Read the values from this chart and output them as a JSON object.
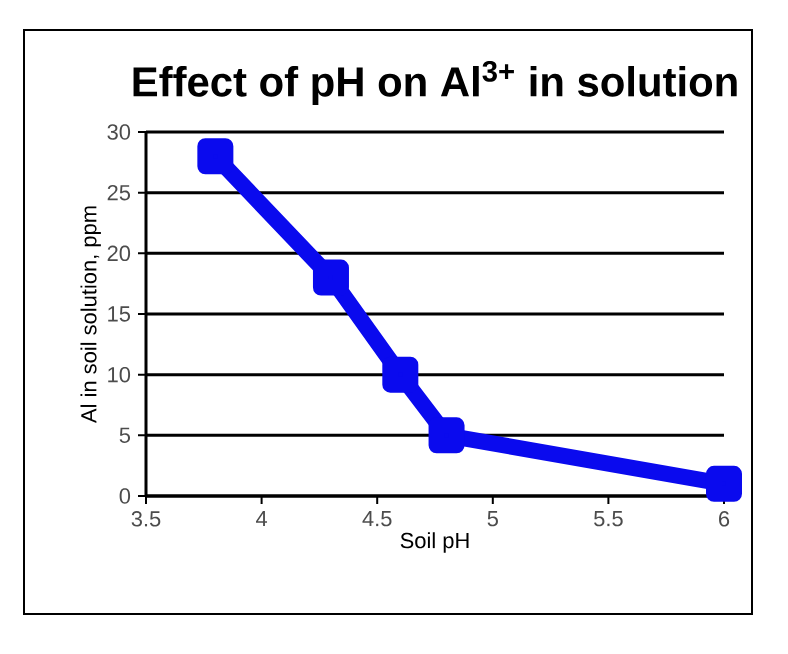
{
  "chart_data": {
    "type": "line",
    "title": "Effect of pH on Al$^{3+}$ in solution",
    "xlabel": "Soil pH",
    "ylabel": "Al in soil solution, ppm",
    "x": [
      3.8,
      4.3,
      4.6,
      4.8,
      6
    ],
    "series": [
      {
        "color": "#0a0aee",
        "values": [
          28,
          18,
          10,
          5,
          1
        ]
      }
    ],
    "xlim": [
      3.5,
      6
    ],
    "xticks": [
      3.5,
      4,
      4.5,
      5,
      5.5,
      6
    ],
    "ylim": [
      0,
      30
    ],
    "yticks": [
      0,
      5,
      10,
      15,
      20,
      25,
      30
    ],
    "grid": "y",
    "marker": "square",
    "line_style": "solid"
  }
}
